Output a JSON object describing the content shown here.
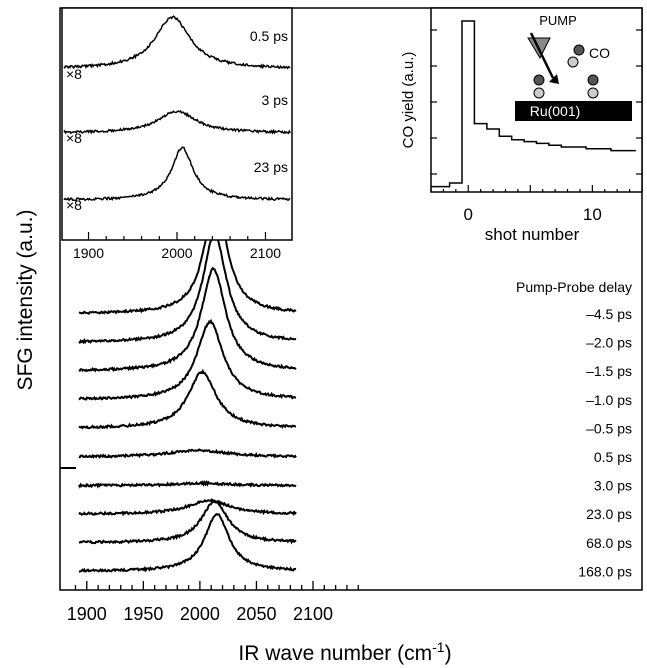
{
  "main": {
    "type": "line",
    "ylabel": "SFG intensity (a.u.)",
    "xlabel_prefix": "IR wave number (cm",
    "xlabel_sup": "-1",
    "xlabel_suffix": ")",
    "xlim": [
      1890,
      2140
    ],
    "xticks": [
      "1900",
      "1950",
      "2000",
      "2050",
      "2100"
    ],
    "legend_header": "Pump-Probe delay",
    "traces": [
      {
        "label": "–4.5 ps",
        "center": 2014,
        "width": 12,
        "amp": 1.0
      },
      {
        "label": "–2.0 ps",
        "center": 2013,
        "width": 12.5,
        "amp": 0.95
      },
      {
        "label": "–1.5 ps",
        "center": 2012,
        "width": 13,
        "amp": 0.89
      },
      {
        "label": "–1.0 ps",
        "center": 2009,
        "width": 14,
        "amp": 0.68
      },
      {
        "label": "–0.5 ps",
        "center": 2002,
        "width": 15,
        "amp": 0.49
      },
      {
        "label": "0.5 ps",
        "center": 1998,
        "width": 30,
        "amp": 0.06
      },
      {
        "label": "3.0 ps",
        "center": 2002,
        "width": 30,
        "amp": 0.02
      },
      {
        "label": "23.0 ps",
        "center": 2008,
        "width": 22,
        "amp": 0.12
      },
      {
        "label": "68.0 ps",
        "center": 2013,
        "width": 14,
        "amp": 0.36
      },
      {
        "label": "168.0 ps",
        "center": 2015,
        "width": 13,
        "amp": 0.5
      }
    ]
  },
  "inset_left": {
    "type": "line",
    "xlim": [
      1870,
      2130
    ],
    "xticks": [
      "1900",
      "2000",
      "2100"
    ],
    "scale_label": "×8",
    "panels": [
      {
        "label": "0.5 ps",
        "center": 1995,
        "width": 24,
        "amp": 1.0
      },
      {
        "label": "3 ps",
        "center": 2000,
        "width": 26,
        "amp": 0.42
      },
      {
        "label": "23 ps",
        "center": 2006,
        "width": 15,
        "amp": 1.0
      }
    ]
  },
  "inset_right": {
    "type": "bar",
    "xlabel": "shot number",
    "ylabel": "CO yield (a.u.)",
    "xlim": [
      -3,
      14
    ],
    "xticks": [
      "0",
      "10"
    ],
    "shots": [
      -3,
      -2,
      -1,
      0,
      1,
      2,
      3,
      4,
      5,
      6,
      7,
      8,
      9,
      10,
      11,
      12,
      13
    ],
    "yields": [
      0.03,
      0.03,
      0.05,
      0.95,
      0.38,
      0.35,
      0.31,
      0.29,
      0.28,
      0.27,
      0.26,
      0.25,
      0.25,
      0.24,
      0.24,
      0.23,
      0.23
    ],
    "pump_label": "PUMP",
    "co_label": "CO",
    "substrate_label": "Ru(001)"
  }
}
